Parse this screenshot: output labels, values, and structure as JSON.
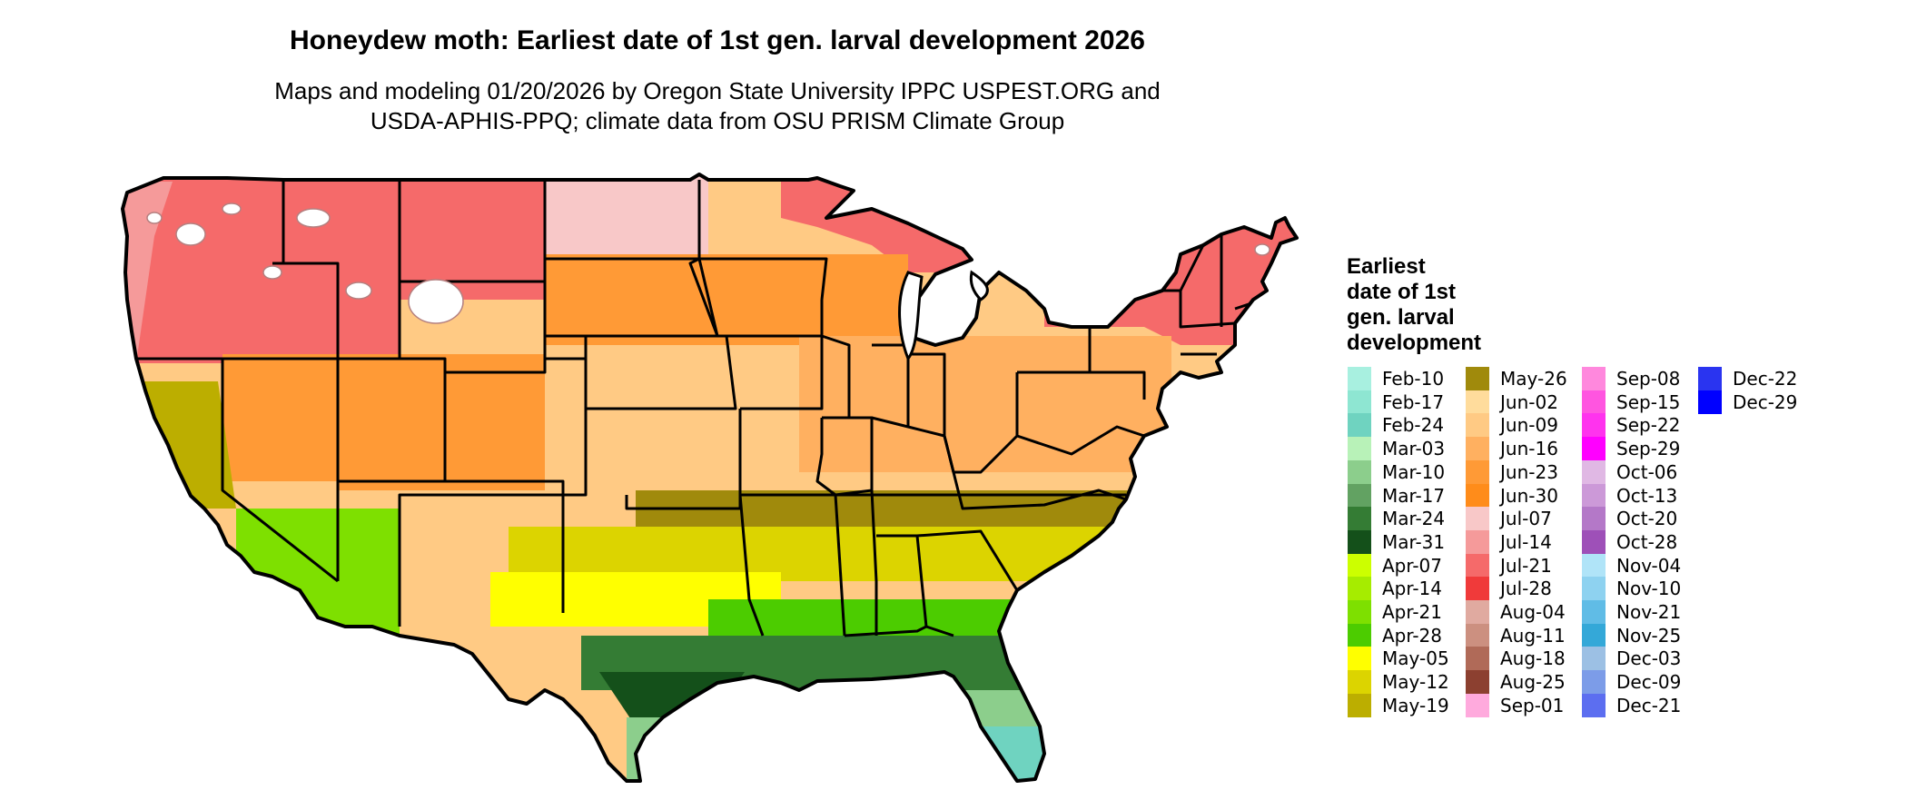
{
  "title": "Honeydew moth: Earliest date of 1st gen. larval development 2026",
  "subtitle": {
    "line1": "Maps and modeling 01/20/2026 by Oregon State University IPPC USPEST.ORG and",
    "line2": "USDA-APHIS-PPQ; climate data from OSU PRISM Climate Group"
  },
  "legend": {
    "title_lines": [
      "Earliest",
      "date of 1st",
      "gen. larval",
      "development"
    ],
    "columns": [
      [
        {
          "label": "Feb-10",
          "color": "#a8f0e0"
        },
        {
          "label": "Feb-17",
          "color": "#8ee6d2"
        },
        {
          "label": "Feb-24",
          "color": "#6fd3c0"
        },
        {
          "label": "Mar-03",
          "color": "#b8f2b8"
        },
        {
          "label": "Mar-10",
          "color": "#8cce8c"
        },
        {
          "label": "Mar-17",
          "color": "#62a262"
        },
        {
          "label": "Mar-24",
          "color": "#347c34"
        },
        {
          "label": "Mar-31",
          "color": "#14501a"
        },
        {
          "label": "Apr-07",
          "color": "#ccff00"
        },
        {
          "label": "Apr-14",
          "color": "#a6ec00"
        },
        {
          "label": "Apr-21",
          "color": "#7ee000"
        },
        {
          "label": "Apr-28",
          "color": "#4ccc00"
        },
        {
          "label": "May-05",
          "color": "#ffff00"
        },
        {
          "label": "May-12",
          "color": "#dcd400"
        },
        {
          "label": "May-19",
          "color": "#bcae00"
        }
      ],
      [
        {
          "label": "May-26",
          "color": "#a08a0c"
        },
        {
          "label": "Jun-02",
          "color": "#ffdc9c"
        },
        {
          "label": "Jun-09",
          "color": "#ffca84"
        },
        {
          "label": "Jun-16",
          "color": "#ffb060"
        },
        {
          "label": "Jun-23",
          "color": "#ff9a36"
        },
        {
          "label": "Jun-30",
          "color": "#ff8c1a"
        },
        {
          "label": "Jul-07",
          "color": "#f8c8c8"
        },
        {
          "label": "Jul-14",
          "color": "#f59a9a"
        },
        {
          "label": "Jul-21",
          "color": "#f56a6a"
        },
        {
          "label": "Jul-28",
          "color": "#f03a3a"
        },
        {
          "label": "Aug-04",
          "color": "#e0aaa0"
        },
        {
          "label": "Aug-11",
          "color": "#cc9080"
        },
        {
          "label": "Aug-18",
          "color": "#b06a58"
        },
        {
          "label": "Aug-25",
          "color": "#8c4030"
        },
        {
          "label": "Sep-01",
          "color": "#ffaadd"
        }
      ],
      [
        {
          "label": "Sep-08",
          "color": "#ff88dd"
        },
        {
          "label": "Sep-15",
          "color": "#ff55e0"
        },
        {
          "label": "Sep-22",
          "color": "#ff33ee"
        },
        {
          "label": "Sep-29",
          "color": "#ff00ff"
        },
        {
          "label": "Oct-06",
          "color": "#e0b8e4"
        },
        {
          "label": "Oct-13",
          "color": "#cc99d8"
        },
        {
          "label": "Oct-20",
          "color": "#b478c8"
        },
        {
          "label": "Oct-28",
          "color": "#9e50b8"
        },
        {
          "label": "Nov-04",
          "color": "#b0e4f8"
        },
        {
          "label": "Nov-10",
          "color": "#8ed2f0"
        },
        {
          "label": "Nov-21",
          "color": "#60bce6"
        },
        {
          "label": "Nov-25",
          "color": "#34a8d8"
        },
        {
          "label": "Dec-03",
          "color": "#9cc0e4"
        },
        {
          "label": "Dec-09",
          "color": "#7c9ce8"
        },
        {
          "label": "Dec-21",
          "color": "#5c6ef0"
        }
      ],
      [
        {
          "label": "Dec-22",
          "color": "#2a34f0"
        },
        {
          "label": "Dec-29",
          "color": "#0000ff"
        }
      ]
    ]
  },
  "map_colors": {
    "outline": "#000000",
    "northwest_mountains": "#f56a6a",
    "pacific_coast": "#f59a9a",
    "northern_plains": "#f8c8c8",
    "central_plains_north": "#ff9a36",
    "central_plains_mid": "#ffca84",
    "midwest": "#ffb060",
    "mid_south": "#a08a0c",
    "southern_belt": "#dcd400",
    "south_texas": "#ffff00",
    "gulf_inland": "#4ccc00",
    "gulf_coast": "#347c34",
    "deep_coast": "#14501a",
    "florida_south": "#8cce8c",
    "florida_tip": "#6fd3c0",
    "california_valley": "#bcae00",
    "desert_sw": "#7ee000",
    "northeast": "#f56a6a",
    "great_lakes_north": "#f56a6a",
    "water": "#ffffff"
  }
}
